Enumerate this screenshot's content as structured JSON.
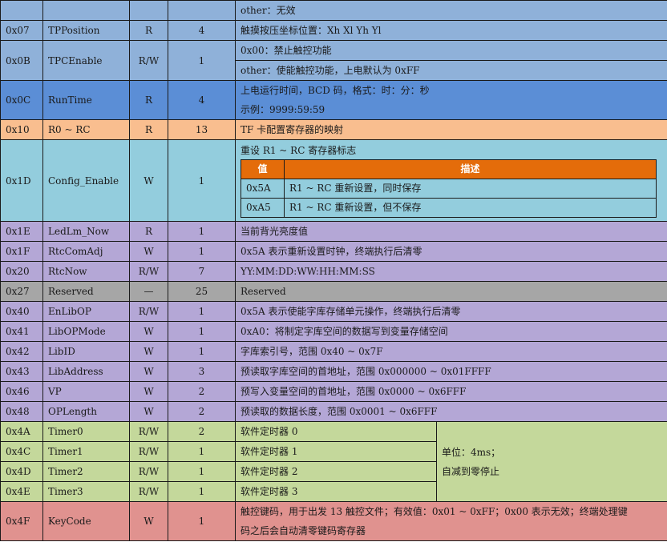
{
  "colors": {
    "blue": "#8fb1d9",
    "dark_blue": "#5b8ed6",
    "orange": "#f9be8f",
    "cyan": "#93cddd",
    "purple": "#b4a7d6",
    "gray": "#a6a6a6",
    "green": "#c4d89b",
    "red": "#e0928f",
    "header_orange": "#e46c0a"
  },
  "top": {
    "desc": "other：无效"
  },
  "r07": {
    "addr": "0x07",
    "name": "TPPosition",
    "rw": "R",
    "len": "4",
    "desc": "触摸按压坐标位置：Xh Xl Yh Yl"
  },
  "r0b": {
    "addr": "0x0B",
    "name": "TPCEnable",
    "rw": "R/W",
    "len": "1",
    "desc1": "0x00：禁止触控功能",
    "desc2": "other：使能触控功能，上电默认为 0xFF"
  },
  "r0c": {
    "addr": "0x0C",
    "name": "RunTime",
    "rw": "R",
    "len": "4",
    "desc1": "上电运行时间，BCD 码，格式：时：分：秒",
    "desc2": "示例：9999:59:59"
  },
  "r10": {
    "addr": "0x10",
    "name": "R0 ~ RC",
    "rw": "R",
    "len": "13",
    "desc": "TF 卡配置寄存器的映射"
  },
  "r1d": {
    "addr": "0x1D",
    "name": "Config_Enable",
    "rw": "W",
    "len": "1",
    "desc": "重设 R1 ~ RC 寄存器标志",
    "inner_header": {
      "value": "值",
      "description": "描述"
    },
    "inner_rows": [
      {
        "value": "0x5A",
        "description": "R1 ~ RC 重新设置，同时保存"
      },
      {
        "value": "0xA5",
        "description": "R1 ~ RC 重新设置，但不保存"
      }
    ]
  },
  "r1e": {
    "addr": "0x1E",
    "name": "LedLm_Now",
    "rw": "R",
    "len": "1",
    "desc": "当前背光亮度值"
  },
  "r1f": {
    "addr": "0x1F",
    "name": "RtcComAdj",
    "rw": "W",
    "len": "1",
    "desc": "0x5A 表示重新设置时钟，终端执行后清零"
  },
  "r20": {
    "addr": "0x20",
    "name": "RtcNow",
    "rw": "R/W",
    "len": "7",
    "desc": "YY:MM:DD:WW:HH:MM:SS"
  },
  "r27": {
    "addr": "0x27",
    "name": "Reserved",
    "rw": "—",
    "len": "25",
    "desc": "Reserved"
  },
  "r40": {
    "addr": "0x40",
    "name": "EnLibOP",
    "rw": "R/W",
    "len": "1",
    "desc": "0x5A 表示使能字库存储单元操作，终端执行后清零"
  },
  "r41": {
    "addr": "0x41",
    "name": "LibOPMode",
    "rw": "W",
    "len": "1",
    "desc": "0xA0：将制定字库空间的数据写到变量存储空间"
  },
  "r42": {
    "addr": "0x42",
    "name": "LibID",
    "rw": "W",
    "len": "1",
    "desc": "字库索引号，范围 0x40 ~ 0x7F"
  },
  "r43": {
    "addr": "0x43",
    "name": "LibAddress",
    "rw": "W",
    "len": "3",
    "desc": "预读取字库空间的首地址，范围 0x000000 ~ 0x01FFFF"
  },
  "r46": {
    "addr": "0x46",
    "name": "VP",
    "rw": "W",
    "len": "2",
    "desc": "预写入变量空间的首地址，范围 0x0000 ~ 0x6FFF"
  },
  "r48": {
    "addr": "0x48",
    "name": "OPLength",
    "rw": "W",
    "len": "2",
    "desc": "预读取的数据长度，范围 0x0001 ~ 0x6FFF"
  },
  "r4a": {
    "addr": "0x4A",
    "name": "Timer0",
    "rw": "R/W",
    "len": "2",
    "desc": "软件定时器 0"
  },
  "r4c": {
    "addr": "0x4C",
    "name": "Timer1",
    "rw": "R/W",
    "len": "1",
    "desc": "软件定时器 1"
  },
  "r4d": {
    "addr": "0x4D",
    "name": "Timer2",
    "rw": "R/W",
    "len": "1",
    "desc": "软件定时器 2"
  },
  "r4e": {
    "addr": "0x4E",
    "name": "Timer3",
    "rw": "R/W",
    "len": "1",
    "desc": "软件定时器 3"
  },
  "timer_note": {
    "line1": "单位：4ms；",
    "line2": "自减到零停止"
  },
  "r4f": {
    "addr": "0x4F",
    "name": "KeyCode",
    "rw": "W",
    "len": "1",
    "desc1": "触控键码，用于出发 13 触控文件；有效值：0x01 ~ 0xFF；0x00 表示无效；终端处理键",
    "desc2": "码之后会自动清零键码寄存器"
  }
}
